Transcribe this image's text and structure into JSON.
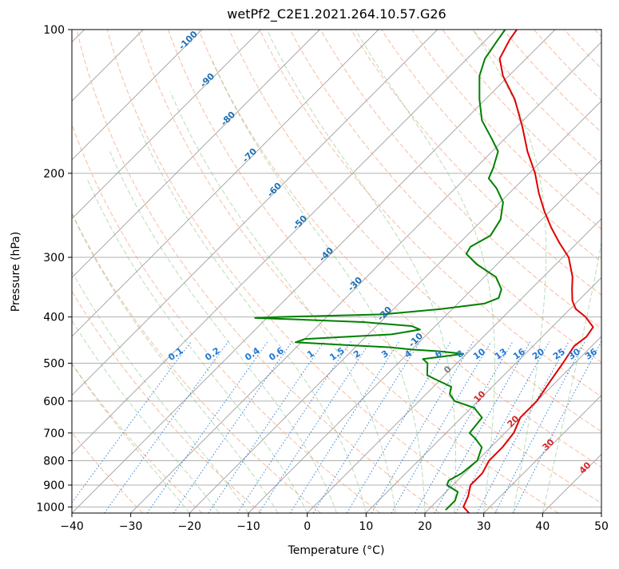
{
  "chart_data": {
    "type": "line",
    "title": "wetPf2_C2E1.2021.264.10.57.G26",
    "xlabel": "Temperature (°C)",
    "ylabel": "Pressure (hPa)",
    "xlim": [
      -40,
      50
    ],
    "ylim": [
      1030,
      100
    ],
    "y_scale": "log",
    "grid": true,
    "x_ticks": [
      -40,
      -30,
      -20,
      -10,
      0,
      10,
      20,
      30,
      40,
      50
    ],
    "y_ticks": [
      100,
      200,
      300,
      400,
      500,
      600,
      700,
      800,
      900,
      1000
    ],
    "series": [
      {
        "name": "",
        "color": "#e00000",
        "points": [
          [
            1030,
            27.5
          ],
          [
            1000,
            25.5
          ],
          [
            950,
            24.5
          ],
          [
            900,
            23.0
          ],
          [
            850,
            23.0
          ],
          [
            800,
            22.0
          ],
          [
            750,
            22.0
          ],
          [
            700,
            21.5
          ],
          [
            650,
            20.0
          ],
          [
            600,
            20.0
          ],
          [
            550,
            19.0
          ],
          [
            500,
            18.0
          ],
          [
            460,
            17.0
          ],
          [
            440,
            17.5
          ],
          [
            420,
            17.0
          ],
          [
            400,
            14.0
          ],
          [
            385,
            11.0
          ],
          [
            370,
            9.0
          ],
          [
            350,
            7.0
          ],
          [
            330,
            5.0
          ],
          [
            300,
            1.0
          ],
          [
            280,
            -3.0
          ],
          [
            260,
            -7.0
          ],
          [
            240,
            -11.0
          ],
          [
            220,
            -15.0
          ],
          [
            200,
            -19.0
          ],
          [
            180,
            -24.0
          ],
          [
            160,
            -29.0
          ],
          [
            140,
            -35.0
          ],
          [
            125,
            -41.0
          ],
          [
            115,
            -44.5
          ],
          [
            105,
            -46.0
          ],
          [
            100,
            -46.5
          ]
        ]
      },
      {
        "name": "",
        "color": "#008000",
        "points": [
          [
            1015,
            23.0
          ],
          [
            970,
            23.0
          ],
          [
            930,
            22.0
          ],
          [
            900,
            19.0
          ],
          [
            880,
            18.5
          ],
          [
            850,
            19.5
          ],
          [
            800,
            20.0
          ],
          [
            750,
            18.5
          ],
          [
            720,
            16.0
          ],
          [
            700,
            14.0
          ],
          [
            650,
            13.5
          ],
          [
            620,
            10.5
          ],
          [
            600,
            6.0
          ],
          [
            580,
            4.0
          ],
          [
            560,
            3.0
          ],
          [
            545,
            0.0
          ],
          [
            530,
            -3.0
          ],
          [
            515,
            -4.0
          ],
          [
            500,
            -5.0
          ],
          [
            490,
            -6.5
          ],
          [
            485,
            -4.0
          ],
          [
            478,
            -0.5
          ],
          [
            472,
            -5.0
          ],
          [
            468,
            -10.0
          ],
          [
            463,
            -14.0
          ],
          [
            458,
            -22.0
          ],
          [
            452,
            -31.0
          ],
          [
            445,
            -30.0
          ],
          [
            435,
            -16.0
          ],
          [
            425,
            -12.0
          ],
          [
            418,
            -14.0
          ],
          [
            410,
            -23.0
          ],
          [
            405,
            -34.0
          ],
          [
            402,
            -42.0
          ],
          [
            400,
            -38.0
          ],
          [
            395,
            -21.0
          ],
          [
            385,
            -12.0
          ],
          [
            375,
            -5.5
          ],
          [
            365,
            -4.0
          ],
          [
            350,
            -5.0
          ],
          [
            330,
            -8.0
          ],
          [
            310,
            -13.5
          ],
          [
            295,
            -17.0
          ],
          [
            285,
            -17.5
          ],
          [
            270,
            -16.0
          ],
          [
            250,
            -17.0
          ],
          [
            230,
            -19.5
          ],
          [
            215,
            -23.0
          ],
          [
            205,
            -26.0
          ],
          [
            195,
            -27.0
          ],
          [
            180,
            -29.0
          ],
          [
            170,
            -32.0
          ],
          [
            155,
            -37.0
          ],
          [
            140,
            -41.0
          ],
          [
            125,
            -45.0
          ],
          [
            115,
            -47.0
          ],
          [
            105,
            -48.0
          ],
          [
            100,
            -48.5
          ]
        ]
      }
    ],
    "dry_adiabat_labels": [
      "-100",
      "-90",
      "-80",
      "-70",
      "-60",
      "-50",
      "-40",
      "-30",
      "-20",
      "-10",
      "0",
      "10",
      "20",
      "30",
      "40"
    ],
    "mixing_ratio_labels": [
      "0.1",
      "0.2",
      "0.4",
      "0.6",
      "1",
      "1.5",
      "2",
      "3",
      "4",
      "6",
      "8",
      "10",
      "13",
      "16",
      "20",
      "25",
      "30",
      "36"
    ],
    "colors": {
      "temperature": "#e00000",
      "dewpoint": "#008000",
      "dry_adiabat": "#f4a582",
      "moist_adiabat": "#7fbf7b",
      "mixing_ratio": "#1f77d4",
      "isotherm": "#9e9e9e",
      "dry_adiabat_label_cold": "#1f6fb2",
      "dry_adiabat_label_warm": "#d62728"
    }
  }
}
